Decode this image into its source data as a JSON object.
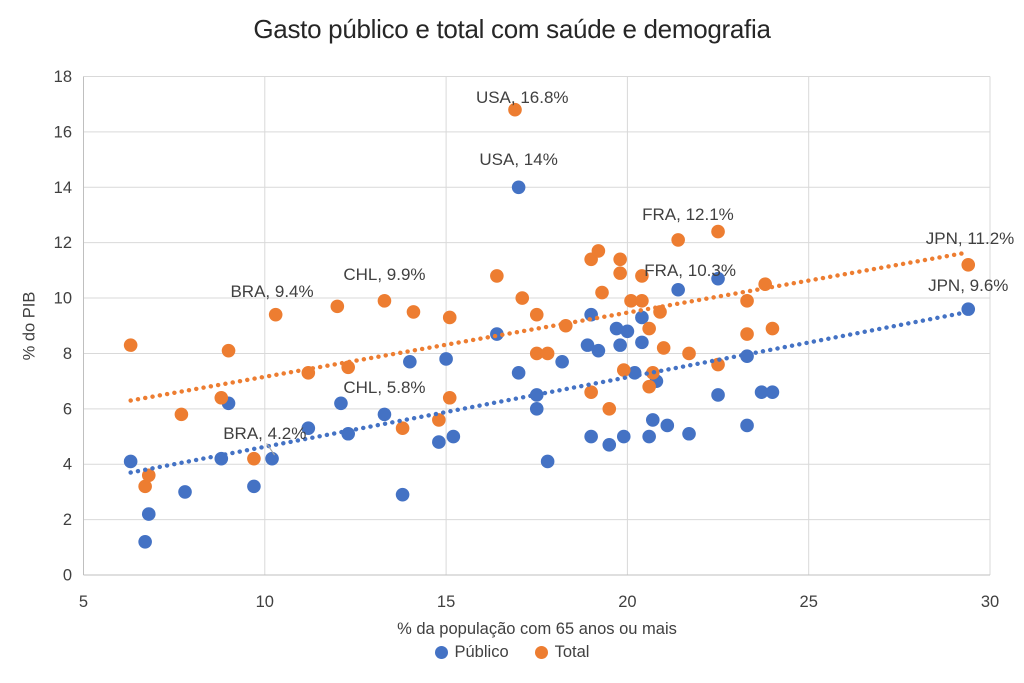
{
  "chart_data": {
    "type": "scatter",
    "title": "Gasto público e total com saúde e demografia",
    "xlabel": "% da população com 65 anos ou mais",
    "ylabel": "% do PIB",
    "xlim": [
      5,
      30
    ],
    "ylim": [
      0,
      18
    ],
    "x_ticks": [
      5,
      10,
      15,
      20,
      25,
      30
    ],
    "y_ticks": [
      0,
      2,
      4,
      6,
      8,
      10,
      12,
      14,
      16,
      18
    ],
    "grid": true,
    "legend_position": "bottom-center",
    "colors": {
      "publico": "#4472C4",
      "total": "#ED7D31",
      "grid": "#D9D9D9",
      "axis": "#BFBFBF",
      "text": "#404040",
      "title_text": "#262626",
      "leader": "#A6A6A6"
    },
    "series": [
      {
        "name": "Público",
        "color_key": "publico",
        "points": [
          [
            6.3,
            4.1
          ],
          [
            6.7,
            1.2
          ],
          [
            6.8,
            2.2
          ],
          [
            7.8,
            3.0
          ],
          [
            8.8,
            4.2
          ],
          [
            9.0,
            6.2
          ],
          [
            9.7,
            3.2
          ],
          [
            10.2,
            4.2
          ],
          [
            11.2,
            5.3
          ],
          [
            12.1,
            6.2
          ],
          [
            12.3,
            5.1
          ],
          [
            13.3,
            5.8
          ],
          [
            13.8,
            2.9
          ],
          [
            14.0,
            7.7
          ],
          [
            14.8,
            4.8
          ],
          [
            15.0,
            7.8
          ],
          [
            15.2,
            5.0
          ],
          [
            16.4,
            8.7
          ],
          [
            17.0,
            14.0
          ],
          [
            17.0,
            7.3
          ],
          [
            17.5,
            6.5
          ],
          [
            17.5,
            6.0
          ],
          [
            17.8,
            4.1
          ],
          [
            18.2,
            7.7
          ],
          [
            18.9,
            8.3
          ],
          [
            19.0,
            9.4
          ],
          [
            19.0,
            5.0
          ],
          [
            19.2,
            8.1
          ],
          [
            19.5,
            4.7
          ],
          [
            19.7,
            8.9
          ],
          [
            19.8,
            8.3
          ],
          [
            19.9,
            5.0
          ],
          [
            20.0,
            8.8
          ],
          [
            20.2,
            7.3
          ],
          [
            20.4,
            9.3
          ],
          [
            20.4,
            8.4
          ],
          [
            20.6,
            5.0
          ],
          [
            20.7,
            5.6
          ],
          [
            20.8,
            7.0
          ],
          [
            21.1,
            5.4
          ],
          [
            21.4,
            10.3
          ],
          [
            21.7,
            5.1
          ],
          [
            22.5,
            10.7
          ],
          [
            22.5,
            6.5
          ],
          [
            23.3,
            7.9
          ],
          [
            23.3,
            5.4
          ],
          [
            23.7,
            6.6
          ],
          [
            24.0,
            6.6
          ],
          [
            29.4,
            9.6
          ]
        ],
        "trendline": {
          "style": "dotted",
          "from": [
            6.3,
            3.7
          ],
          "to": [
            29.4,
            9.5
          ]
        }
      },
      {
        "name": "Total",
        "color_key": "total",
        "points": [
          [
            6.3,
            8.3
          ],
          [
            6.7,
            3.2
          ],
          [
            6.8,
            3.6
          ],
          [
            7.7,
            5.8
          ],
          [
            8.8,
            6.4
          ],
          [
            9.0,
            8.1
          ],
          [
            9.7,
            4.2
          ],
          [
            10.3,
            9.4
          ],
          [
            11.2,
            7.3
          ],
          [
            12.0,
            9.7
          ],
          [
            12.3,
            7.5
          ],
          [
            13.3,
            9.9
          ],
          [
            13.8,
            5.3
          ],
          [
            14.1,
            9.5
          ],
          [
            14.8,
            5.6
          ],
          [
            15.1,
            9.3
          ],
          [
            15.1,
            6.4
          ],
          [
            16.4,
            10.8
          ],
          [
            16.9,
            16.8
          ],
          [
            17.1,
            10.0
          ],
          [
            17.5,
            9.4
          ],
          [
            17.5,
            8.0
          ],
          [
            17.8,
            8.0
          ],
          [
            18.3,
            9.0
          ],
          [
            19.0,
            11.4
          ],
          [
            19.0,
            6.6
          ],
          [
            19.2,
            11.7
          ],
          [
            19.3,
            10.2
          ],
          [
            19.5,
            6.0
          ],
          [
            19.8,
            11.4
          ],
          [
            19.8,
            10.9
          ],
          [
            19.9,
            7.4
          ],
          [
            20.1,
            9.9
          ],
          [
            20.4,
            9.9
          ],
          [
            20.4,
            10.8
          ],
          [
            20.6,
            8.9
          ],
          [
            20.6,
            6.8
          ],
          [
            20.7,
            7.3
          ],
          [
            20.9,
            9.5
          ],
          [
            21.0,
            8.2
          ],
          [
            21.4,
            12.1
          ],
          [
            21.7,
            8.0
          ],
          [
            22.5,
            12.4
          ],
          [
            22.5,
            7.6
          ],
          [
            23.3,
            9.9
          ],
          [
            23.3,
            8.7
          ],
          [
            23.8,
            10.5
          ],
          [
            24.0,
            8.9
          ],
          [
            29.4,
            11.2
          ]
        ],
        "trendline": {
          "style": "dotted",
          "from": [
            6.3,
            6.3
          ],
          "to": [
            29.4,
            11.65
          ]
        }
      }
    ],
    "annotations": [
      {
        "text": "USA, 16.8%",
        "x": 17.1,
        "y": 17.05
      },
      {
        "text": "USA, 14%",
        "x": 17.0,
        "y": 14.8
      },
      {
        "text": "FRA, 12.1%",
        "x": 21.67,
        "y": 12.82
      },
      {
        "text": "FRA, 10.3%",
        "x": 21.73,
        "y": 10.8
      },
      {
        "text": "CHL, 9.9%",
        "x": 13.3,
        "y": 10.65
      },
      {
        "text": "BRA, 9.4%",
        "x": 10.2,
        "y": 10.04
      },
      {
        "text": "CHL, 5.8%",
        "x": 13.3,
        "y": 6.57
      },
      {
        "text": "BRA, 4.2%",
        "x": 10.0,
        "y": 4.91
      },
      {
        "text": "JPN, 11.2%",
        "x": 29.45,
        "y": 11.95
      },
      {
        "text": "JPN, 9.6%",
        "x": 29.4,
        "y": 10.25
      }
    ],
    "leader_line": {
      "from": [
        10.05,
        4.75
      ],
      "to": [
        10.27,
        4.33
      ]
    }
  },
  "legend": {
    "items": [
      {
        "label": "Público",
        "color_key": "publico"
      },
      {
        "label": "Total",
        "color_key": "total"
      }
    ]
  }
}
